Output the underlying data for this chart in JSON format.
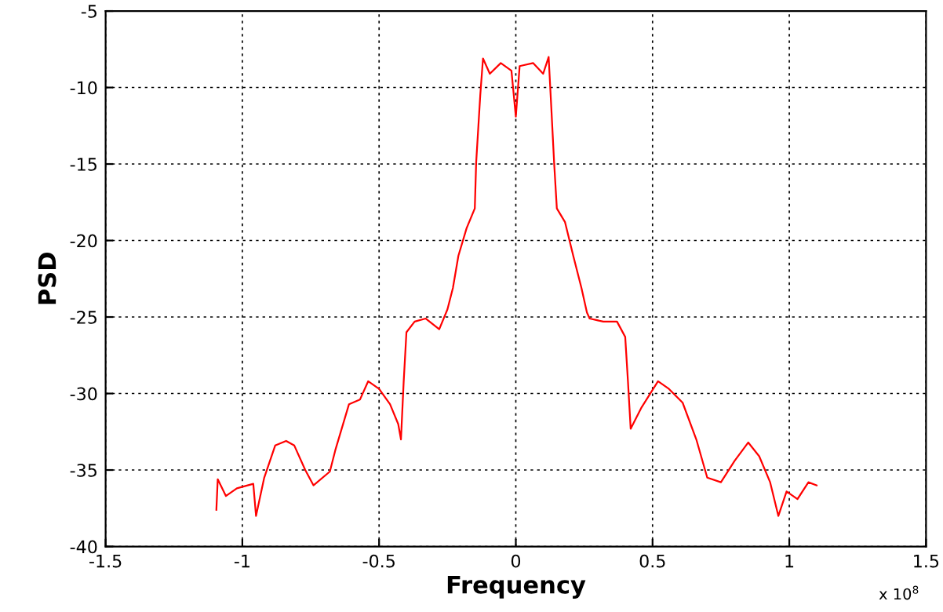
{
  "chart_data": {
    "type": "line",
    "xlabel": "Frequency",
    "ylabel": "PSD",
    "annotations": [
      "x 10$^{8}$"
    ],
    "xlim": [
      -1.5,
      1.5
    ],
    "xticks": [
      -1.5,
      -1,
      -0.5,
      0,
      0.5,
      1,
      1.5
    ],
    "ylim": [
      -40,
      -5
    ],
    "yticks": [
      -40,
      -35,
      -30,
      -25,
      -20,
      -15,
      -10,
      -5
    ],
    "grid": true,
    "line_style": "solid",
    "marker": "none",
    "series": [
      {
        "color": "#ff0000",
        "x": [
          -1.095,
          -1.09,
          -1.06,
          -1.02,
          -0.96,
          -0.95,
          -0.92,
          -0.88,
          -0.84,
          -0.81,
          -0.77,
          -0.74,
          -0.68,
          -0.66,
          -0.61,
          -0.57,
          -0.54,
          -0.5,
          -0.46,
          -0.43,
          -0.42,
          -0.41,
          -0.4,
          -0.37,
          -0.33,
          -0.28,
          -0.25,
          -0.23,
          -0.21,
          -0.18,
          -0.15,
          -0.145,
          -0.13,
          -0.12,
          -0.095,
          -0.055,
          -0.016,
          0,
          0.014,
          0.063,
          0.1,
          0.12,
          0.13,
          0.14,
          0.15,
          0.18,
          0.21,
          0.24,
          0.26,
          0.27,
          0.32,
          0.37,
          0.4,
          0.41,
          0.42,
          0.46,
          0.52,
          0.56,
          0.61,
          0.66,
          0.7,
          0.75,
          0.8,
          0.85,
          0.89,
          0.93,
          0.96,
          0.99,
          1.03,
          1.07,
          1.1
        ],
        "values": [
          -37.6,
          -35.6,
          -36.7,
          -36.2,
          -35.9,
          -38,
          -35.5,
          -33.4,
          -33.1,
          -33.4,
          -35,
          -36,
          -35.1,
          -33.7,
          -30.7,
          -30.4,
          -29.2,
          -29.7,
          -30.7,
          -32,
          -33,
          -29.2,
          -26,
          -25.3,
          -25.1,
          -25.8,
          -24.5,
          -23.1,
          -21,
          -19.2,
          -17.9,
          -14.9,
          -10.5,
          -8.1,
          -9.1,
          -8.4,
          -8.9,
          -11.9,
          -8.6,
          -8.4,
          -9.1,
          -8,
          -11.4,
          -14.9,
          -17.9,
          -18.8,
          -21,
          -23.1,
          -24.7,
          -25.1,
          -25.3,
          -25.3,
          -26.3,
          -29.2,
          -32.3,
          -30.9,
          -29.2,
          -29.7,
          -30.6,
          -33,
          -35.5,
          -35.8,
          -34.4,
          -33.2,
          -34.1,
          -35.8,
          -38,
          -36.4,
          -36.9,
          -35.8,
          -36
        ]
      }
    ]
  }
}
